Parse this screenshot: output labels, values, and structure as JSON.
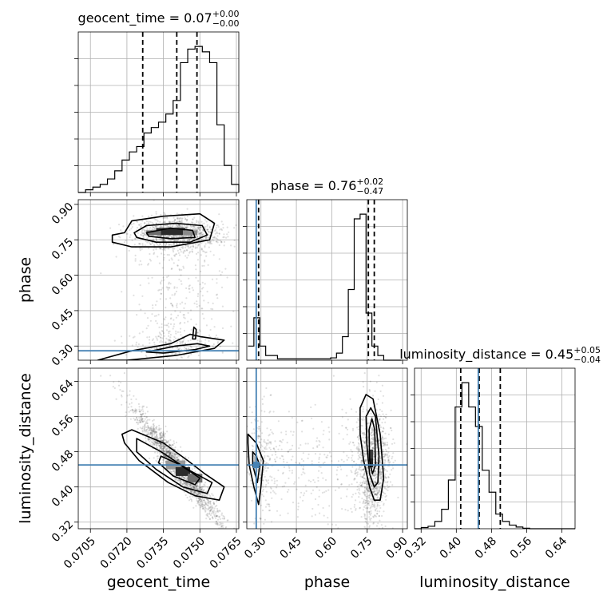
{
  "chart_data": {
    "type": "corner",
    "parameters": [
      "geocent_time",
      "phase",
      "luminosity_distance"
    ],
    "ranges": {
      "geocent_time": [
        0.07,
        0.0766
      ],
      "phase": [
        0.24,
        0.92
      ],
      "luminosity_distance": [
        0.305,
        0.67
      ]
    },
    "ticks": {
      "geocent_time": [
        "0.0705",
        "0.0720",
        "0.0735",
        "0.0750",
        "0.0765"
      ],
      "phase": [
        "0.30",
        "0.45",
        "0.60",
        "0.75",
        "0.90"
      ],
      "luminosity_distance": [
        "0.32",
        "0.40",
        "0.48",
        "0.56",
        "0.64"
      ]
    },
    "truths": {
      "geocent_time": null,
      "phase": 0.28,
      "luminosity_distance": 0.45
    },
    "truth_color": "#4682b4",
    "titles": [
      {
        "param": "geocent_time",
        "text": "geocent_time = 0.07",
        "plus": "+0.00",
        "minus": "−0.00"
      },
      {
        "param": "phase",
        "text": "phase = 0.76",
        "plus": "+0.02",
        "minus": "−0.47"
      },
      {
        "param": "luminosity_distance",
        "text": "luminosity_distance = 0.45",
        "plus": "+0.05",
        "minus": "−0.04"
      }
    ],
    "quantiles": {
      "geocent_time": [
        0.07265,
        0.07405,
        0.07488
      ],
      "phase": [
        0.29,
        0.755,
        0.78
      ],
      "luminosity_distance": [
        0.41,
        0.452,
        0.5
      ]
    },
    "histograms": {
      "geocent_time": {
        "edges_start": 0.07,
        "bin_width": 0.0003,
        "counts": [
          0,
          1,
          2,
          3,
          5,
          8,
          12,
          15,
          17,
          22,
          24,
          26,
          29,
          34,
          48,
          53,
          54,
          52,
          48,
          25,
          10,
          3,
          1,
          0,
          0,
          0,
          0,
          0
        ]
      },
      "phase": {
        "edges_start": 0.245,
        "bin_width": 0.025,
        "counts": [
          3,
          9,
          3,
          1,
          1,
          0.3,
          0.3,
          0.3,
          0.3,
          0.3,
          0.3,
          0.3,
          0.3,
          0.3,
          0.5,
          1.5,
          5,
          15,
          30,
          31,
          10,
          3,
          1,
          0,
          0,
          0
        ]
      },
      "luminosity_distance": {
        "edges_start": 0.305,
        "bin_width": 0.0154,
        "counts": [
          0,
          0.5,
          1,
          3,
          8,
          20,
          50,
          60,
          50,
          42,
          24,
          15,
          6,
          3,
          1.5,
          0.7,
          0.2,
          0,
          0,
          0,
          0,
          0,
          0,
          0
        ]
      }
    }
  }
}
